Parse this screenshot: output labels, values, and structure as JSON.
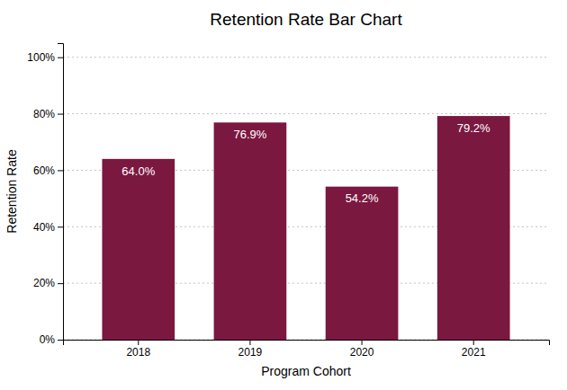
{
  "chart_data": {
    "type": "bar",
    "title": "Retention Rate Bar Chart",
    "xlabel": "Program Cohort",
    "ylabel": "Retention Rate",
    "categories": [
      "2018",
      "2019",
      "2020",
      "2021"
    ],
    "values": [
      64.0,
      76.9,
      54.2,
      79.2
    ],
    "value_labels": [
      "64.0%",
      "76.9%",
      "54.2%",
      "79.2%"
    ],
    "data_labels": true,
    "color": "#7B1840",
    "ylim": [
      0,
      105
    ],
    "yticks": [
      {
        "value": 0,
        "label": "0%"
      },
      {
        "value": 20,
        "label": "20%"
      },
      {
        "value": 40,
        "label": "40%"
      },
      {
        "value": 60,
        "label": "60%"
      },
      {
        "value": 80,
        "label": "80%"
      },
      {
        "value": 100,
        "label": "100%"
      }
    ],
    "grid": true
  }
}
